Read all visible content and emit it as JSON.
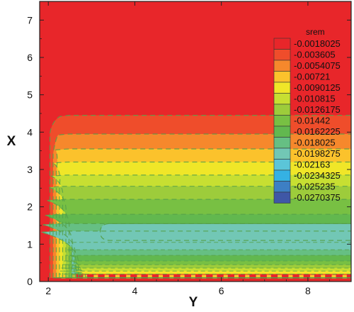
{
  "chart_data": {
    "type": "heatmap",
    "subtype": "filled-contour",
    "xlabel": "Y",
    "ylabel": "X",
    "xlim": [
      1.8,
      9.0
    ],
    "ylim": [
      0,
      7.5
    ],
    "x_ticks": [
      2,
      4,
      6,
      8
    ],
    "y_ticks": [
      0,
      1,
      2,
      3,
      4,
      5,
      6,
      7
    ],
    "grid": false,
    "contour_lines": "dashed",
    "legend_position": "right",
    "legend": {
      "title": "srem",
      "levels": [
        {
          "label": "-0.0018025",
          "value": -0.0018025,
          "color": "#e8262a"
        },
        {
          "label": "-0.003605",
          "value": -0.003605,
          "color": "#ef4d2b"
        },
        {
          "label": "-0.0054075",
          "value": -0.0054075,
          "color": "#f6882c"
        },
        {
          "label": "-0.00721",
          "value": -0.00721,
          "color": "#fbc22c"
        },
        {
          "label": "-0.0090125",
          "value": -0.0090125,
          "color": "#f0e628"
        },
        {
          "label": "-0.010815",
          "value": -0.010815,
          "color": "#c7df32"
        },
        {
          "label": "-0.0126175",
          "value": -0.0126175,
          "color": "#9dcc3b"
        },
        {
          "label": "-0.01442",
          "value": -0.01442,
          "color": "#78c043"
        },
        {
          "label": "-0.0162225",
          "value": -0.0162225,
          "color": "#62b84f"
        },
        {
          "label": "-0.018025",
          "value": -0.018025,
          "color": "#66bf83"
        },
        {
          "label": "-0.0198275",
          "value": -0.0198275,
          "color": "#72c7b5"
        },
        {
          "label": "-0.02163",
          "value": -0.02163,
          "color": "#5bc5d8"
        },
        {
          "label": "-0.0234325",
          "value": -0.0234325,
          "color": "#35b1e3"
        },
        {
          "label": "-0.025235",
          "value": -0.025235,
          "color": "#3d7fc4"
        },
        {
          "label": "-0.0270375",
          "value": -0.0270375,
          "color": "#3f57a6"
        }
      ]
    },
    "bands": [
      {
        "level": -0.0018025,
        "boundary_x": 5.25
      },
      {
        "level": -0.003605,
        "boundary_x": 4.45
      },
      {
        "level": -0.0054075,
        "boundary_x": 3.95
      },
      {
        "level": -0.00721,
        "boundary_x": 3.55
      },
      {
        "level": -0.0090125,
        "boundary_x": 3.2
      },
      {
        "level": -0.010815,
        "boundary_x": 2.85
      },
      {
        "level": -0.0126175,
        "boundary_x": 2.55
      },
      {
        "level": -0.01442,
        "boundary_x": 2.2
      },
      {
        "level": -0.0162225,
        "boundary_x": 1.8
      },
      {
        "level": -0.018025,
        "boundary_x": 1.55
      },
      {
        "level": -0.0198275,
        "boundary_x": 1.35
      }
    ],
    "inner_bands": [
      {
        "level": -0.0198275,
        "boundary_x": 1.05
      },
      {
        "level": -0.018025,
        "boundary_x": 0.85
      },
      {
        "level": -0.0162225,
        "boundary_x": 0.7
      },
      {
        "level": -0.01442,
        "boundary_x": 0.55
      },
      {
        "level": -0.0126175,
        "boundary_x": 0.45
      },
      {
        "level": -0.010815,
        "boundary_x": 0.36
      },
      {
        "level": -0.0090125,
        "boundary_x": 0.28
      },
      {
        "level": -0.0054075,
        "boundary_x": 0.2
      }
    ],
    "plateau_bands": {
      "bar_y_start": 3.2,
      "bar_x_range": [
        1.1,
        1.55
      ]
    }
  }
}
